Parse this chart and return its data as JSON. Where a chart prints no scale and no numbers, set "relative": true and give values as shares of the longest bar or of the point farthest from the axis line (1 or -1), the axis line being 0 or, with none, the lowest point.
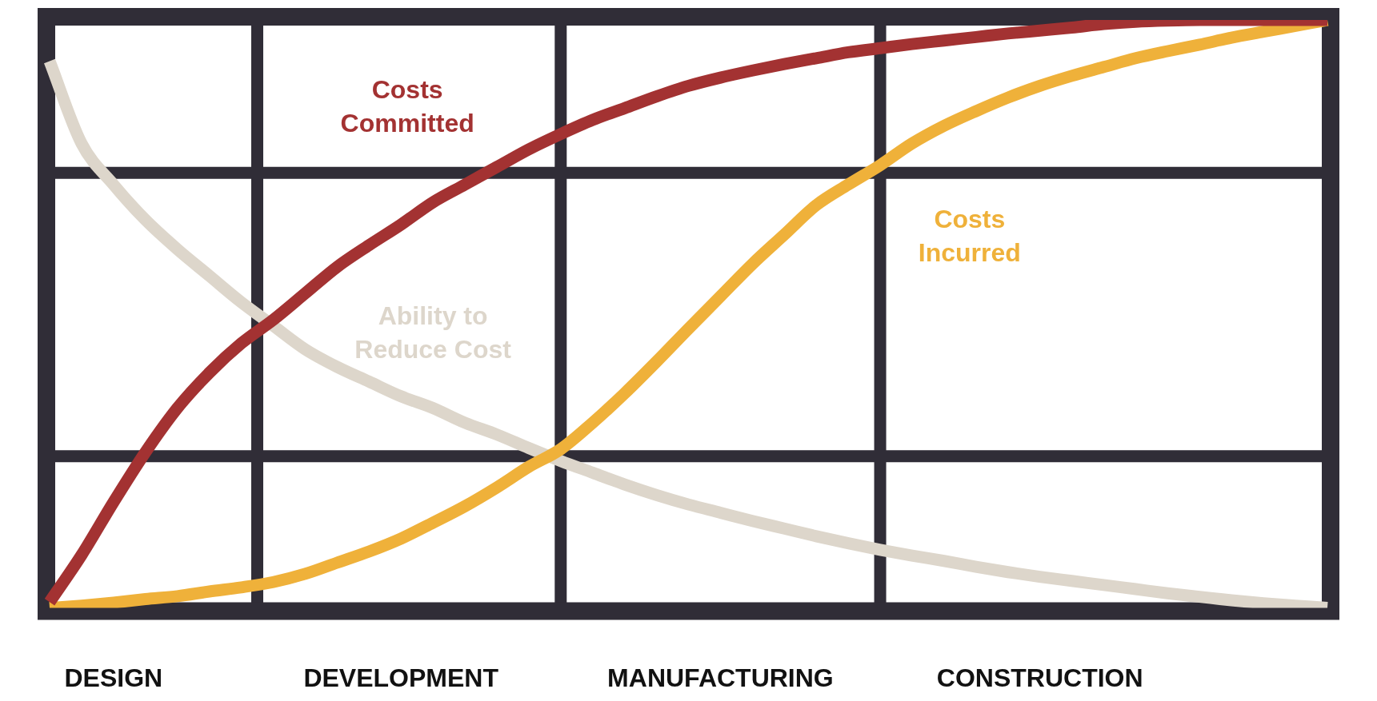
{
  "chart_data": {
    "type": "line",
    "relative": true,
    "categories": [
      null,
      null,
      "DESIGN",
      null,
      null,
      null,
      null,
      null,
      null,
      null,
      null,
      "DEVELOPMENT",
      null,
      null,
      null,
      null,
      null,
      null,
      null,
      null,
      null,
      "MANUFACTURING",
      null,
      null,
      null,
      null,
      null,
      null,
      null,
      null,
      null,
      "CONSTRUCTION",
      null,
      null,
      null,
      null,
      null,
      null,
      null,
      null,
      null
    ],
    "grid": true,
    "legend": false,
    "marker": "none",
    "line_style": "solid",
    "series": [
      {
        "name": "Costs Committed",
        "color": "#a33232",
        "values": [
          0.01,
          0.09,
          0.18,
          0.265,
          0.34,
          0.4,
          0.45,
          0.49,
          0.535,
          0.58,
          0.617,
          0.652,
          0.69,
          0.72,
          0.75,
          0.78,
          0.806,
          0.83,
          0.85,
          0.87,
          0.888,
          0.902,
          0.914,
          0.925,
          0.935,
          0.945,
          0.952,
          0.959,
          0.965,
          0.971,
          0.977,
          0.982,
          0.987,
          0.993,
          0.997,
          0.999,
          1,
          1,
          1,
          1,
          1
        ]
      },
      {
        "name": "Costs Incurred",
        "color": "#efb13a",
        "values": [
          0,
          0.004,
          0.009,
          0.015,
          0.02,
          0.028,
          0.035,
          0.044,
          0.058,
          0.077,
          0.096,
          0.118,
          0.145,
          0.173,
          0.205,
          0.24,
          0.27,
          0.315,
          0.365,
          0.419,
          0.475,
          0.53,
          0.585,
          0.635,
          0.685,
          0.72,
          0.753,
          0.79,
          0.82,
          0.845,
          0.868,
          0.888,
          0.905,
          0.92,
          0.935,
          0.947,
          0.958,
          0.97,
          0.98,
          0.99,
          1
        ]
      },
      {
        "name": "Ability to Reduce Cost",
        "color": "#ddd6cb",
        "values": [
          0.93,
          0.79,
          0.72,
          0.66,
          0.61,
          0.565,
          0.52,
          0.48,
          0.44,
          0.41,
          0.385,
          0.36,
          0.34,
          0.315,
          0.295,
          0.272,
          0.25,
          0.23,
          0.21,
          0.192,
          0.176,
          0.162,
          0.148,
          0.135,
          0.122,
          0.11,
          0.099,
          0.089,
          0.08,
          0.07,
          0.061,
          0.053,
          0.046,
          0.039,
          0.032,
          0.025,
          0.019,
          0.013,
          0.008,
          0.004,
          0
        ]
      }
    ]
  }
}
